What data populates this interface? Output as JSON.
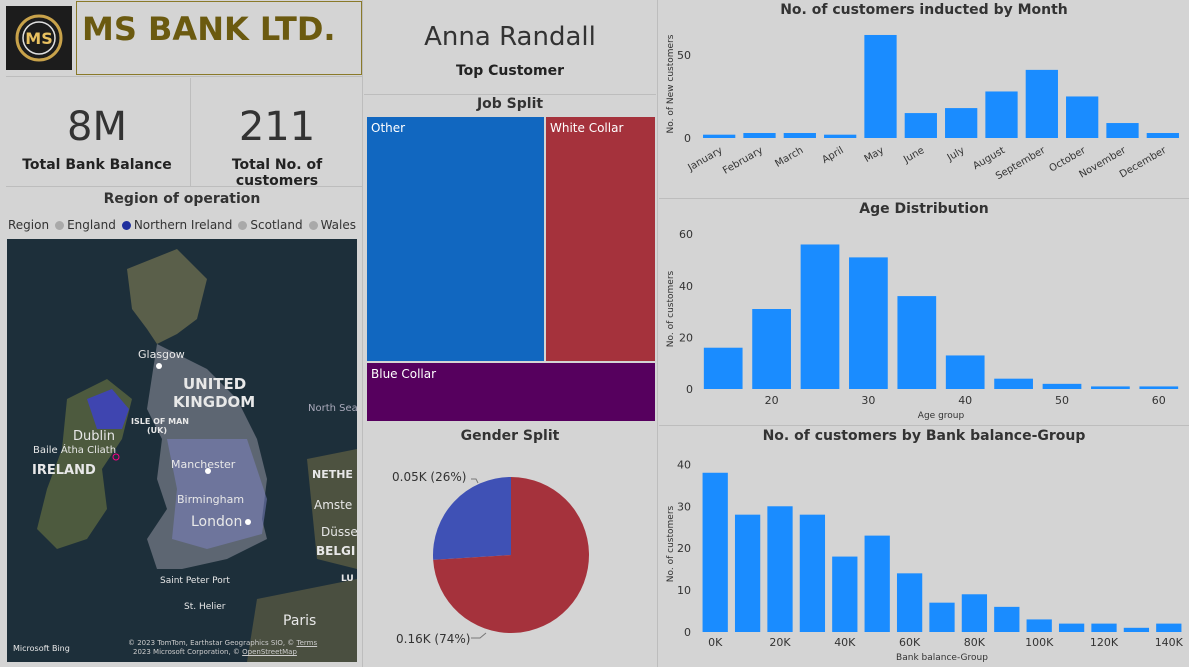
{
  "header": {
    "bank_name": "MS BANK LTD.",
    "logo_text": "MS"
  },
  "kpis": {
    "total_balance_value": "8M",
    "total_balance_label": "Total Bank Balance",
    "total_customers_value": "211",
    "total_customers_label": "Total No. of customers"
  },
  "top_customer": {
    "name": "Anna Randall",
    "label": "Top Customer"
  },
  "region": {
    "title": "Region of operation",
    "legend_label": "Region",
    "items": [
      {
        "name": "England",
        "color": "#a9a9a9"
      },
      {
        "name": "Northern Ireland",
        "color": "#1f2f9e"
      },
      {
        "name": "Scotland",
        "color": "#a9a9a9"
      },
      {
        "name": "Wales",
        "color": "#a9a9a9"
      }
    ],
    "map_labels": {
      "uk_line1": "UNITED",
      "uk_line2": "KINGDOM",
      "north_sea": "North Sea",
      "isle_of_man_line1": "ISLE OF MAN",
      "isle_of_man_line2": "(UK)",
      "glasgow": "Glasgow",
      "dublin": "Dublin",
      "baile": "Baile Átha Cliath",
      "ireland": "IRELAND",
      "manchester": "Manchester",
      "birmingham": "Birmingham",
      "london": "London",
      "neth": "NETHE",
      "amste": "Amste",
      "dusse": "Düsse",
      "belgi": "BELGI",
      "lu": "LU",
      "saint_peter": "Saint Peter Port",
      "st_helier": "St. Helier",
      "paris": "Paris",
      "bing": "Microsoft Bing",
      "copyright1": "© 2023 TomTom, Earthstar Geographics SIO, ©",
      "terms": "Terms",
      "copyright2": "2023 Microsoft Corporation, ©",
      "osm": "OpenStreetMap"
    }
  },
  "job_split": {
    "title": "Job Split",
    "cells": [
      {
        "label": "Other",
        "color": "#1167c0"
      },
      {
        "label": "White Collar",
        "color": "#a5323c"
      },
      {
        "label": "Blue Collar",
        "color": "#56005e"
      }
    ]
  },
  "gender_split": {
    "title": "Gender Split",
    "labels": [
      "0.05K (26%)",
      "0.16K (74%)"
    ]
  },
  "colors": {
    "bar": "#1a8cff",
    "pie_small": "#3f51b5",
    "pie_large": "#a5323c"
  },
  "chart_data": [
    {
      "type": "bar",
      "title": "No. of customers inducted by Month",
      "xlabel": "",
      "ylabel": "No. of New customers",
      "categories": [
        "January",
        "February",
        "March",
        "April",
        "May",
        "June",
        "July",
        "August",
        "September",
        "October",
        "November",
        "December"
      ],
      "values": [
        2,
        3,
        3,
        2,
        62,
        15,
        18,
        28,
        41,
        25,
        9,
        3
      ],
      "ylim": [
        0,
        65
      ],
      "yticks": [
        0,
        50
      ]
    },
    {
      "type": "bar",
      "title": "Age Distribution",
      "xlabel": "Age group",
      "ylabel": "No. of customers",
      "x": [
        15,
        20,
        25,
        30,
        35,
        40,
        45,
        50,
        55,
        60
      ],
      "values": [
        16,
        31,
        56,
        51,
        36,
        13,
        4,
        2,
        1,
        1
      ],
      "xlim": [
        12.5,
        62.5
      ],
      "xticks": [
        20,
        30,
        40,
        50,
        60
      ],
      "ylim": [
        0,
        62
      ],
      "yticks": [
        0,
        20,
        40,
        60
      ]
    },
    {
      "type": "bar",
      "title": "No. of customers by Bank balance-Group",
      "xlabel": "Bank balance-Group",
      "ylabel": "No. of customers",
      "x": [
        0,
        10,
        20,
        30,
        40,
        50,
        60,
        70,
        80,
        90,
        100,
        110,
        120,
        130,
        140
      ],
      "values": [
        38,
        28,
        30,
        28,
        18,
        23,
        14,
        7,
        9,
        6,
        3,
        2,
        2,
        1,
        2
      ],
      "xtick_labels": [
        "0K",
        "20K",
        "40K",
        "60K",
        "80K",
        "100K",
        "120K",
        "140K"
      ],
      "ylim": [
        0,
        42
      ],
      "yticks": [
        0,
        10,
        20,
        30,
        40
      ]
    },
    {
      "type": "pie",
      "title": "Gender Split",
      "labels": [
        "0.05K (26%)",
        "0.16K (74%)"
      ],
      "values": [
        0.05,
        0.16
      ],
      "percent": [
        26,
        74
      ]
    }
  ]
}
